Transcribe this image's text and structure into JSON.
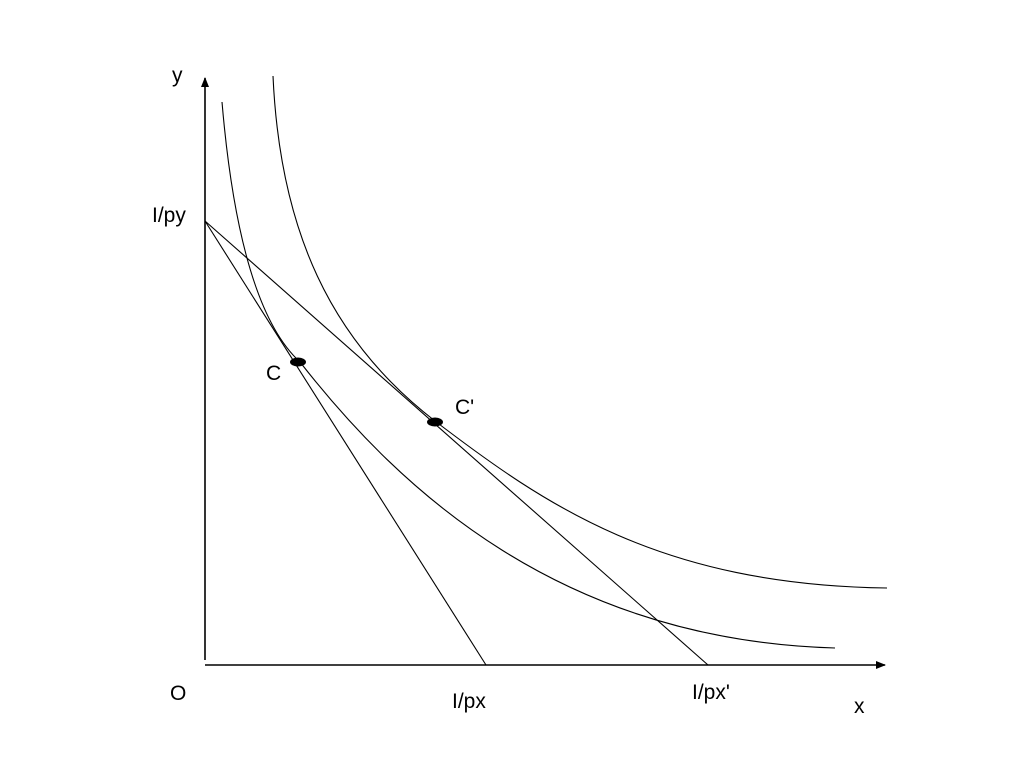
{
  "axes": {
    "y_label": "y",
    "x_label": "x",
    "origin_label": "O"
  },
  "intercepts": {
    "y_intercept": "I/py",
    "x_intercept_original": "I/px",
    "x_intercept_new": "I/px'"
  },
  "points": {
    "original_optimum": "C",
    "new_optimum": "C'"
  },
  "colors": {
    "ink": "#000000",
    "background": "#ffffff"
  }
}
